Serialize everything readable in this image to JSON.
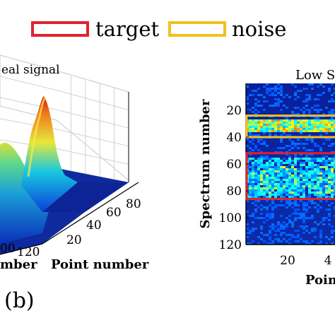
{
  "legend": {
    "target": {
      "label": "target",
      "color": "#e0232a"
    },
    "noise": {
      "label": "noise",
      "color": "#f2c01e"
    }
  },
  "subfigure_label": "(b)",
  "chart_data": [
    {
      "type": "surface",
      "title": "eal signal",
      "xlabel": "Point number",
      "ylabel": "mber",
      "x_ticks": [
        "20",
        "40",
        "60",
        "80"
      ],
      "y_ticks": [
        "00",
        "120"
      ],
      "peak": {
        "point": 60,
        "spectrum": 10
      },
      "colormap": "jet"
    },
    {
      "type": "heatmap",
      "title": "Low S",
      "xlabel": "Poin",
      "ylabel": "Spectrum number",
      "x_ticks": [
        "20",
        "4"
      ],
      "y_ticks": [
        "20",
        "40",
        "60",
        "80",
        "100",
        "120"
      ],
      "ylim": [
        120,
        0
      ],
      "colormap": "jet",
      "regions": [
        {
          "name": "noise",
          "y_range": [
            24,
            40
          ],
          "color": "#f2c01e"
        },
        {
          "name": "target",
          "y_range": [
            52,
            86
          ],
          "color": "#e0232a"
        }
      ]
    }
  ]
}
